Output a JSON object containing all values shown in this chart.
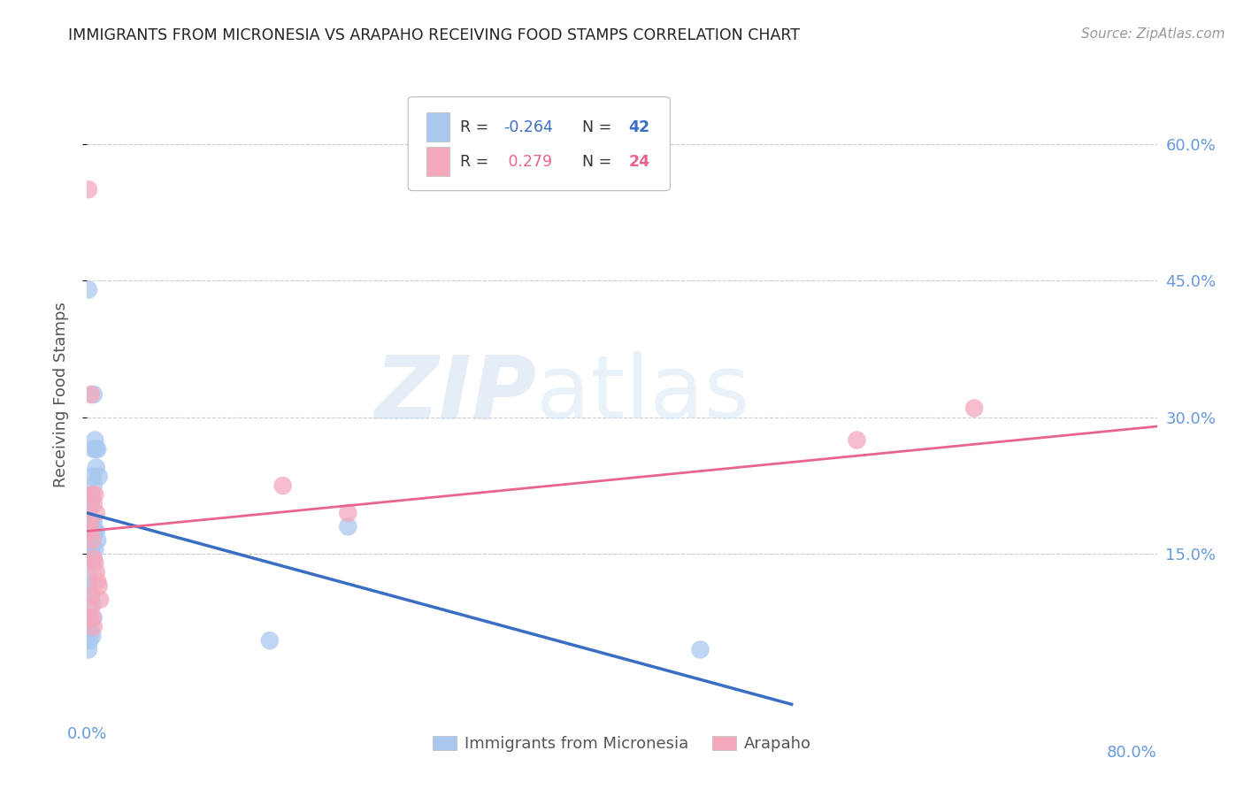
{
  "title": "IMMIGRANTS FROM MICRONESIA VS ARAPAHO RECEIVING FOOD STAMPS CORRELATION CHART",
  "source": "Source: ZipAtlas.com",
  "ylabel": "Receiving Food Stamps",
  "right_yticks": [
    "60.0%",
    "45.0%",
    "30.0%",
    "15.0%"
  ],
  "right_ytick_vals": [
    0.6,
    0.45,
    0.3,
    0.15
  ],
  "xlim": [
    0.0,
    0.82
  ],
  "ylim": [
    -0.03,
    0.68
  ],
  "legend_r_blue": "-0.264",
  "legend_n_blue": "42",
  "legend_r_pink": "0.279",
  "legend_n_pink": "24",
  "blue_scatter": [
    [
      0.001,
      0.44
    ],
    [
      0.003,
      0.205
    ],
    [
      0.005,
      0.325
    ],
    [
      0.005,
      0.265
    ],
    [
      0.004,
      0.235
    ],
    [
      0.006,
      0.275
    ],
    [
      0.007,
      0.265
    ],
    [
      0.007,
      0.245
    ],
    [
      0.003,
      0.215
    ],
    [
      0.005,
      0.225
    ],
    [
      0.008,
      0.265
    ],
    [
      0.009,
      0.235
    ],
    [
      0.001,
      0.195
    ],
    [
      0.001,
      0.185
    ],
    [
      0.003,
      0.175
    ],
    [
      0.004,
      0.185
    ],
    [
      0.005,
      0.185
    ],
    [
      0.006,
      0.175
    ],
    [
      0.007,
      0.175
    ],
    [
      0.008,
      0.165
    ],
    [
      0.001,
      0.165
    ],
    [
      0.002,
      0.165
    ],
    [
      0.003,
      0.155
    ],
    [
      0.004,
      0.175
    ],
    [
      0.002,
      0.145
    ],
    [
      0.003,
      0.145
    ],
    [
      0.005,
      0.145
    ],
    [
      0.006,
      0.155
    ],
    [
      0.001,
      0.125
    ],
    [
      0.002,
      0.115
    ],
    [
      0.003,
      0.105
    ],
    [
      0.004,
      0.095
    ],
    [
      0.002,
      0.075
    ],
    [
      0.003,
      0.065
    ],
    [
      0.001,
      0.07
    ],
    [
      0.002,
      0.055
    ],
    [
      0.005,
      0.08
    ],
    [
      0.004,
      0.06
    ],
    [
      0.001,
      0.045
    ],
    [
      0.14,
      0.055
    ],
    [
      0.2,
      0.18
    ],
    [
      0.47,
      0.045
    ]
  ],
  "pink_scatter": [
    [
      0.001,
      0.55
    ],
    [
      0.003,
      0.325
    ],
    [
      0.004,
      0.215
    ],
    [
      0.005,
      0.205
    ],
    [
      0.006,
      0.215
    ],
    [
      0.007,
      0.195
    ],
    [
      0.002,
      0.185
    ],
    [
      0.003,
      0.175
    ],
    [
      0.004,
      0.165
    ],
    [
      0.005,
      0.145
    ],
    [
      0.006,
      0.14
    ],
    [
      0.007,
      0.13
    ],
    [
      0.008,
      0.12
    ],
    [
      0.009,
      0.115
    ],
    [
      0.01,
      0.1
    ],
    [
      0.003,
      0.09
    ],
    [
      0.004,
      0.08
    ],
    [
      0.005,
      0.07
    ],
    [
      0.15,
      0.225
    ],
    [
      0.2,
      0.195
    ],
    [
      0.68,
      0.31
    ],
    [
      0.59,
      0.275
    ],
    [
      0.003,
      0.105
    ],
    [
      0.002,
      0.08
    ]
  ],
  "blue_line_x": [
    0.0,
    0.54
  ],
  "blue_line_y": [
    0.195,
    -0.015
  ],
  "pink_line_x": [
    0.0,
    0.82
  ],
  "pink_line_y": [
    0.175,
    0.29
  ],
  "watermark_zip": "ZIP",
  "watermark_atlas": "atlas",
  "blue_color": "#A8C8F0",
  "pink_color": "#F4A8BC",
  "blue_line_color": "#3A6EC4",
  "pink_line_color": "#E8648C",
  "background_color": "#FFFFFF",
  "grid_color": "#CCCCCC",
  "right_axis_color": "#6699DD",
  "title_color": "#222222",
  "ylabel_color": "#555555"
}
